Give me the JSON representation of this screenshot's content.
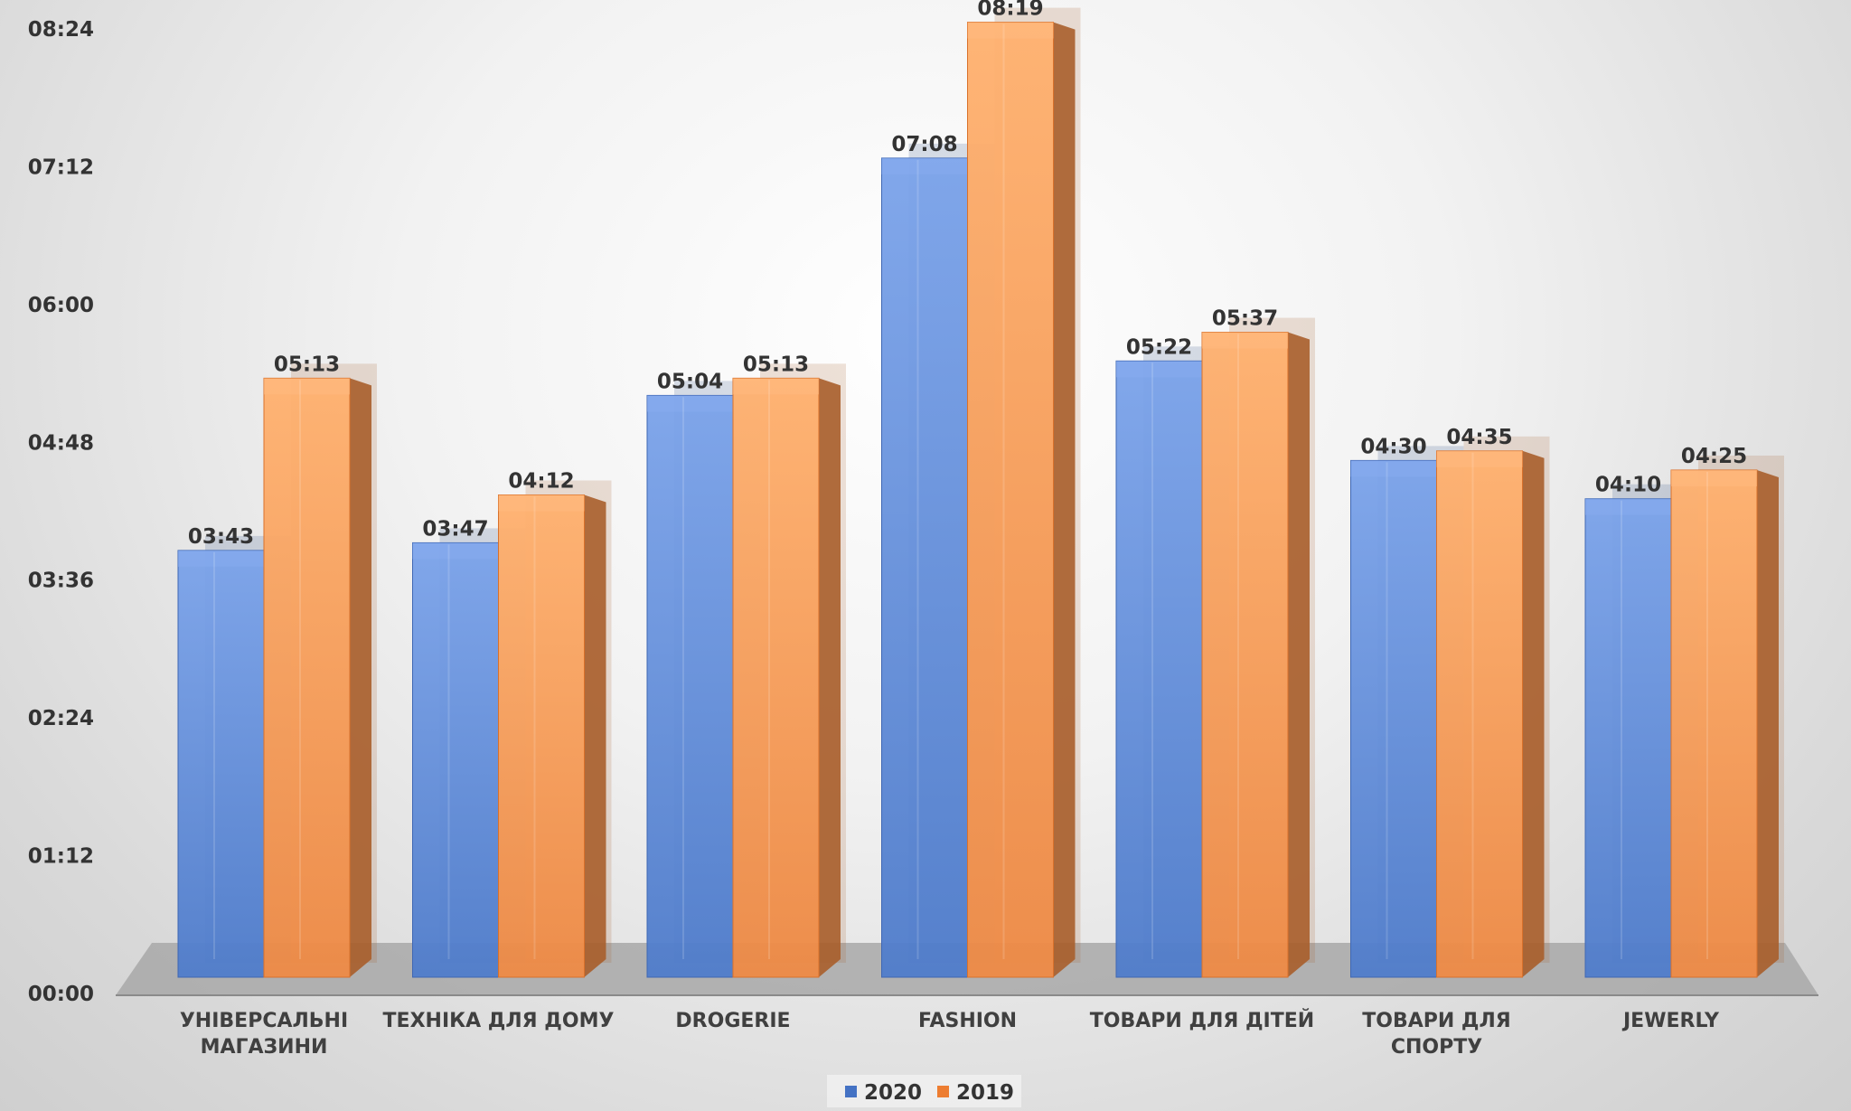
{
  "chart_data": {
    "type": "bar",
    "title": "",
    "xlabel": "",
    "ylabel": "",
    "ylim": [
      0,
      504
    ],
    "y_ticks": [
      {
        "value": 0,
        "label": "00:00"
      },
      {
        "value": 72,
        "label": "01:12"
      },
      {
        "value": 144,
        "label": "02:24"
      },
      {
        "value": 216,
        "label": "03:36"
      },
      {
        "value": 288,
        "label": "04:48"
      },
      {
        "value": 360,
        "label": "06:00"
      },
      {
        "value": 432,
        "label": "07:12"
      },
      {
        "value": 504,
        "label": "08:24"
      }
    ],
    "categories": [
      [
        "УНІВЕРСАЛЬНІ",
        "МАГАЗИНИ"
      ],
      [
        "ТЕХНІКА ДЛЯ ДОМУ"
      ],
      [
        "DROGERIE"
      ],
      [
        "FASHION"
      ],
      [
        "ТОВАРИ ДЛЯ ДІТЕЙ"
      ],
      [
        "ТОВАРИ ДЛЯ",
        "СПОРТУ"
      ],
      [
        "JEWERLY"
      ]
    ],
    "series": [
      {
        "name": "2020",
        "color": "#4472C4",
        "values": [
          223,
          227,
          304,
          428,
          322,
          270,
          250
        ],
        "labels": [
          "03:43",
          "03:47",
          "05:04",
          "07:08",
          "05:22",
          "04:30",
          "04:10"
        ]
      },
      {
        "name": "2019",
        "color": "#ED7D31",
        "values": [
          313,
          252,
          313,
          499,
          337,
          275,
          265
        ],
        "labels": [
          "05:13",
          "04:12",
          "05:13",
          "08:19",
          "05:37",
          "04:35",
          "04:25"
        ]
      }
    ],
    "legend_position": "bottom-center",
    "grid": false
  }
}
